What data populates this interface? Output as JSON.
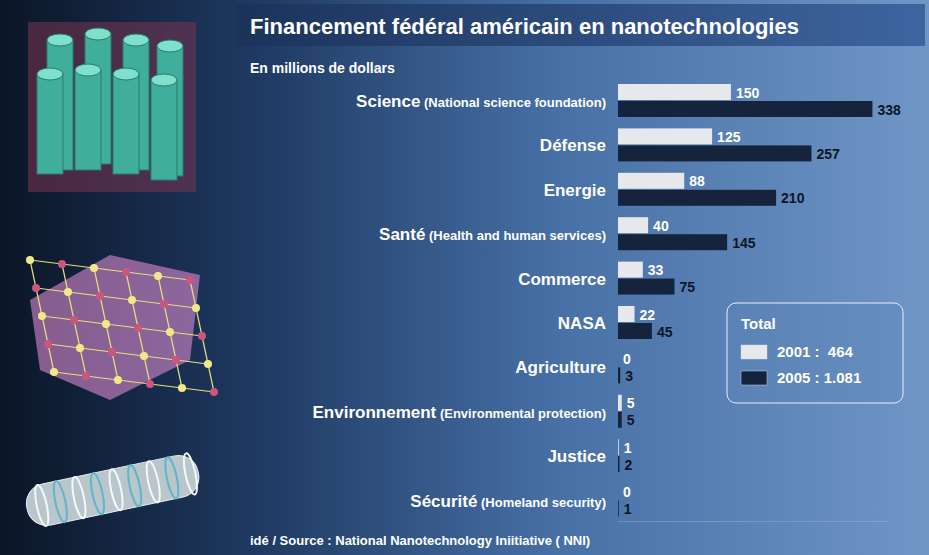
{
  "chart_data": {
    "type": "bar",
    "orientation": "horizontal",
    "title": "Financement fédéral américain en nanotechnologies",
    "subtitle": "En millions de dollars",
    "source": "idé / Source : National Nanotechnology Iniitiative ( NNI)",
    "legend_title": "Total",
    "categories": [
      "Science (National science foundation)",
      "Défense",
      "Energie",
      "Santé (Health and human services)",
      "Commerce",
      "NASA",
      "Agriculture",
      "Environnement (Environmental protection)",
      "Justice",
      "Sécurité (Homeland security)"
    ],
    "series": [
      {
        "name": "2001 :  464",
        "color": "#e6e8ec",
        "values": [
          150,
          125,
          88,
          40,
          33,
          22,
          0,
          5,
          1,
          0
        ]
      },
      {
        "name": "2005 : 1.081",
        "color": "#16233d",
        "values": [
          338,
          257,
          210,
          145,
          75,
          45,
          3,
          5,
          2,
          1
        ]
      }
    ],
    "xlim": [
      0,
      360
    ],
    "tick_labels": false,
    "grid": false,
    "data_labels": true,
    "legend": "bottom-right"
  }
}
